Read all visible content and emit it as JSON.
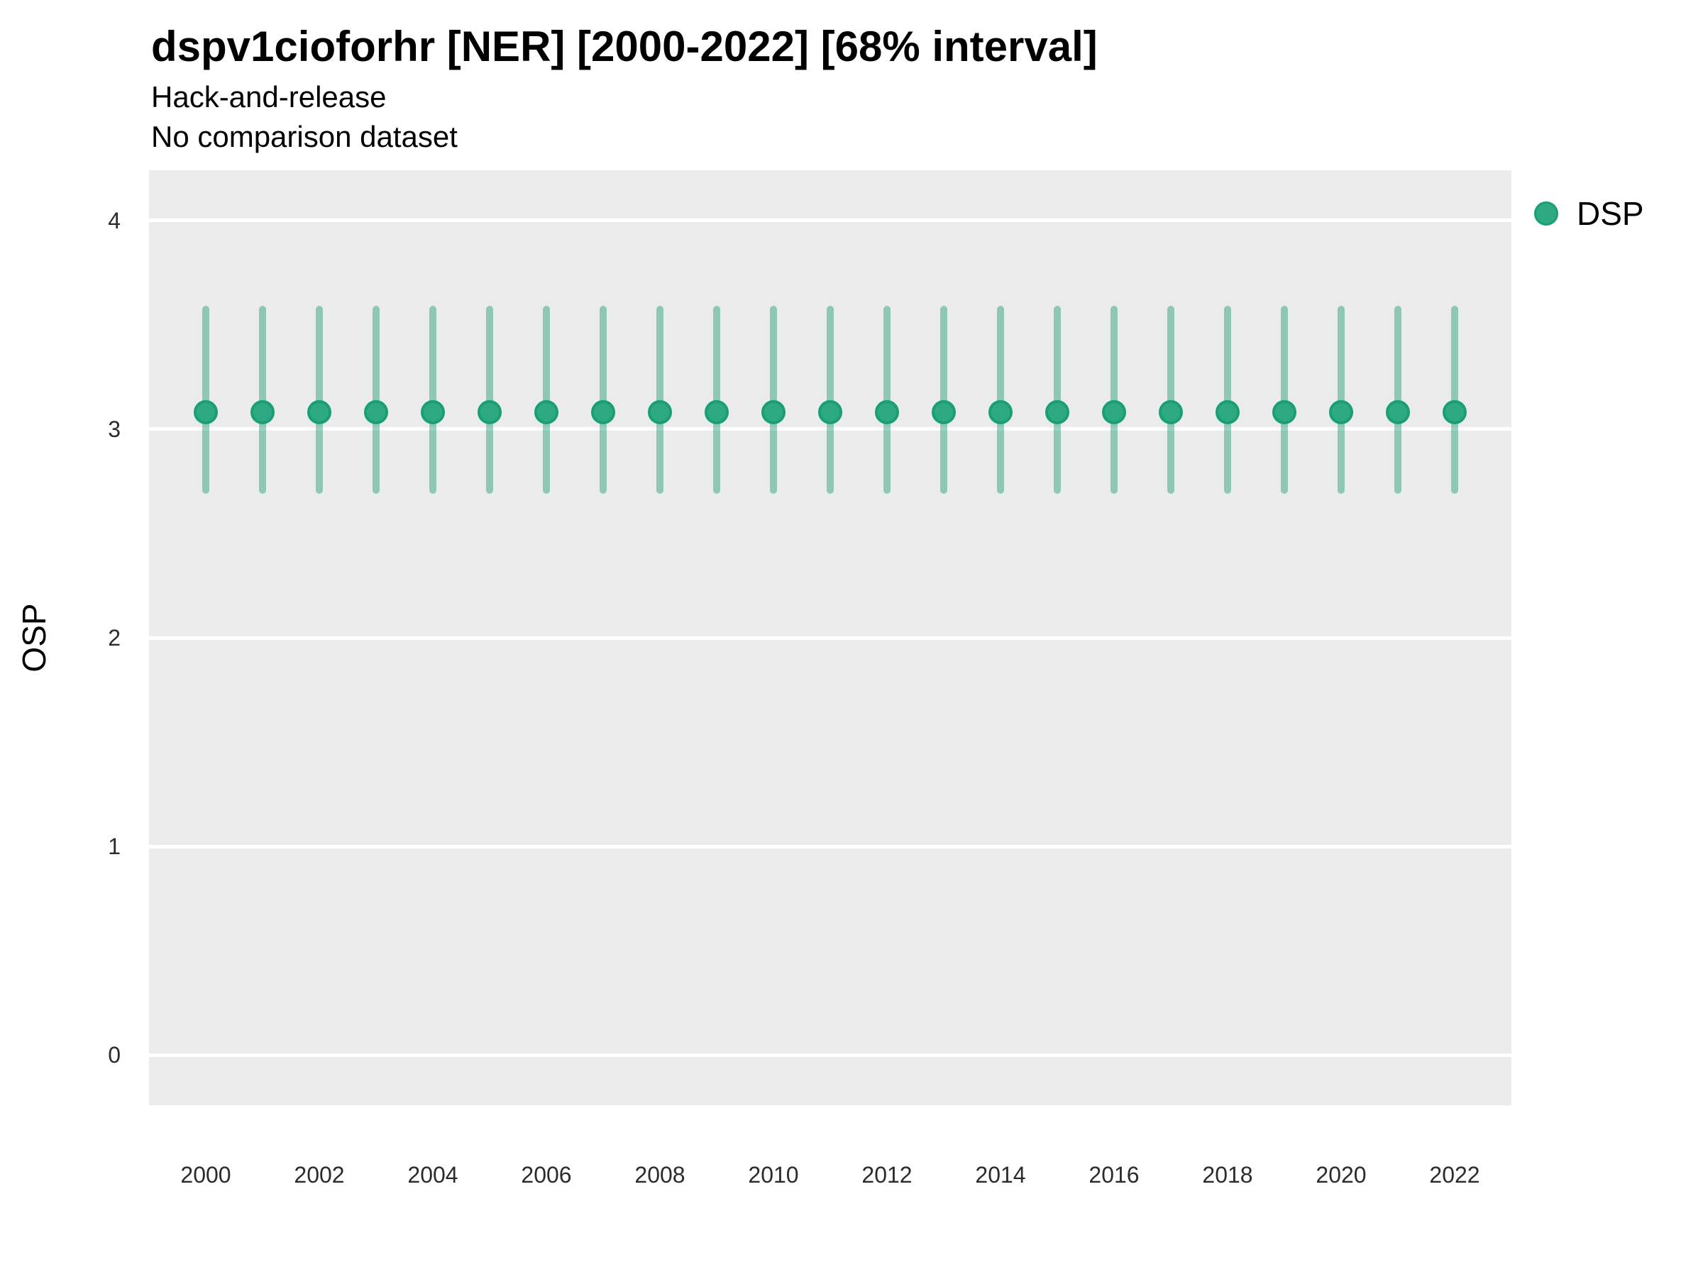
{
  "title": "dspv1cioforhr [NER] [2000-2022] [68% interval]",
  "subtitle_line1": "Hack-and-release",
  "subtitle_line2": "No comparison dataset",
  "legend": {
    "position": "right",
    "items": [
      {
        "label": "DSP",
        "color": "#2FA983"
      }
    ]
  },
  "colors": {
    "point_fill": "#2FA983",
    "point_stroke": "#1A9E77",
    "interval_bar": "rgba(27,158,119,0.45)",
    "panel_background": "#EBEBEB",
    "gridline": "#FFFFFF",
    "tick_text": "#2b2b2b",
    "text": "#000000"
  },
  "chart_data": {
    "type": "scatter",
    "subtype": "pointrange",
    "title": "dspv1cioforhr [NER] [2000-2022] [68% interval]",
    "subtitle": [
      "Hack-and-release",
      "No comparison dataset"
    ],
    "xlabel": "",
    "ylabel": "OSP",
    "interval": "68%",
    "grid": "horizontal-major-only",
    "legend_position": "right",
    "xlim": [
      1999,
      2023
    ],
    "ylim": [
      -0.24,
      4.24
    ],
    "x_ticks": [
      2000,
      2002,
      2004,
      2006,
      2008,
      2010,
      2012,
      2014,
      2016,
      2018,
      2020,
      2022
    ],
    "y_ticks": [
      0,
      1,
      2,
      3,
      4
    ],
    "series": [
      {
        "name": "DSP",
        "x": [
          2000,
          2001,
          2002,
          2003,
          2004,
          2005,
          2006,
          2007,
          2008,
          2009,
          2010,
          2011,
          2012,
          2013,
          2014,
          2015,
          2016,
          2017,
          2018,
          2019,
          2020,
          2021,
          2022
        ],
        "y": [
          3.08,
          3.08,
          3.08,
          3.08,
          3.08,
          3.08,
          3.08,
          3.08,
          3.08,
          3.08,
          3.08,
          3.08,
          3.08,
          3.08,
          3.08,
          3.08,
          3.08,
          3.08,
          3.08,
          3.08,
          3.08,
          3.08,
          3.08
        ],
        "y_low": [
          2.69,
          2.69,
          2.69,
          2.69,
          2.69,
          2.69,
          2.69,
          2.69,
          2.69,
          2.69,
          2.69,
          2.69,
          2.69,
          2.69,
          2.69,
          2.69,
          2.69,
          2.69,
          2.69,
          2.69,
          2.69,
          2.69,
          2.69
        ],
        "y_high": [
          3.59,
          3.59,
          3.59,
          3.59,
          3.59,
          3.59,
          3.59,
          3.59,
          3.59,
          3.59,
          3.59,
          3.59,
          3.59,
          3.59,
          3.59,
          3.59,
          3.59,
          3.59,
          3.59,
          3.59,
          3.59,
          3.59,
          3.59
        ]
      }
    ]
  }
}
